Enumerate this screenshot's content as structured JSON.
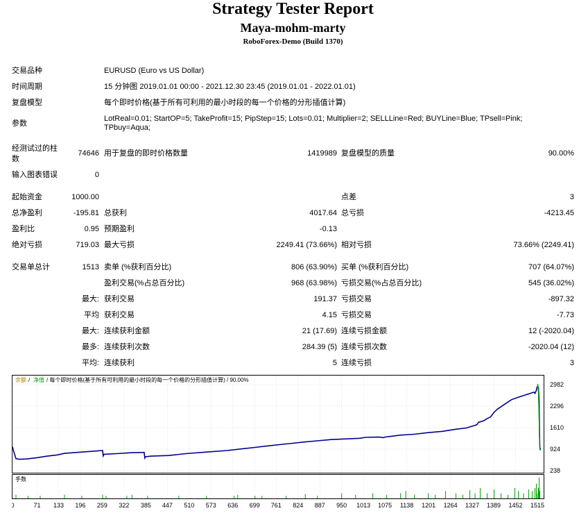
{
  "header": {
    "title": "Strategy Tester Report",
    "expert": "Maya-mohm-marty",
    "server": "RoboForex-Demo (Build 1370)"
  },
  "info": {
    "symbol_label": "交易品种",
    "symbol_value": "EURUSD (Euro vs US Dollar)",
    "period_label": "时间周期",
    "period_value": "15 分钟图 2019.01.01 00:00 - 2021.12.30 23:45 (2019.01.01 - 2022.01.01)",
    "model_label": "复盘模型",
    "model_value": "每个即时价格(基于所有可利用的最小时段的每一个价格的分形插值计算)",
    "params_label": "参数",
    "params_line1": "LotReal=0.01; StartOP=5; TakeProfit=15; PipStep=15; Lots=0.01; Multiplier=2; SELLLine=Red; BUYLine=Blue; TPsell=Pink;",
    "params_line2": "TPbuy=Aqua;"
  },
  "bars": {
    "bars_label_1": "经测试过的柱",
    "bars_label_2": "数",
    "bars_value": "74646",
    "ticks_label": "用于复盘的即时价格数量",
    "ticks_value": "1419989",
    "quality_label": "复盘模型的质量",
    "quality_value": "90.00%",
    "errors_label": "输入图表错误",
    "errors_value": "0"
  },
  "stats": {
    "initial_deposit_label": "起始资金",
    "initial_deposit": "1000.00",
    "spread_label": "点差",
    "spread": "3",
    "net_profit_label": "总净盈利",
    "net_profit": "-195.81",
    "gross_profit_label": "总获利",
    "gross_profit": "4017.64",
    "gross_loss_label": "总亏损",
    "gross_loss": "-4213.45",
    "profit_factor_label": "盈利比",
    "profit_factor": "0.95",
    "expected_payoff_label": "预期盈利",
    "expected_payoff": "-0.13",
    "abs_drawdown_label": "绝对亏损",
    "abs_drawdown": "719.03",
    "max_drawdown_label": "最大亏损",
    "max_drawdown": "2249.41 (73.66%)",
    "rel_drawdown_label": "相对亏损",
    "rel_drawdown": "73.66% (2249.41)"
  },
  "trades": {
    "total_label": "交易单总计",
    "total": "1513",
    "short_label": "卖单 (%获利百分比)",
    "short": "806 (63.90%)",
    "long_label": "买单 (%获利百分比)",
    "long": "707 (64.07%)",
    "profit_trades_label": "盈利交易(%占总百分比)",
    "profit_trades": "968 (63.98%)",
    "loss_trades_label": "亏损交易(%占总百分比)",
    "loss_trades": "545 (36.02%)",
    "largest_label": "最大:",
    "largest_profit_label": "获利交易",
    "largest_profit": "191.37",
    "largest_loss_label": "亏损交易",
    "largest_loss": "-897.32",
    "average_label": "平均",
    "average_profit_label": "获利交易",
    "average_profit": "4.15",
    "average_loss_label": "亏损交易",
    "average_loss": "-7.73",
    "max_label": "最大:",
    "max_consec_wins_label": "连续获利金额",
    "max_consec_wins": "21 (17.69)",
    "max_consec_losses_label": "连续亏损金额",
    "max_consec_losses": "12 (-2020.04)",
    "maximal_label": "最多:",
    "maximal_consec_profit_label": "连续获利次数",
    "maximal_consec_profit": "284.39 (5)",
    "maximal_consec_loss_label": "连续亏损次数",
    "maximal_consec_loss": "-2020.04 (12)",
    "avg_label": "平均:",
    "avg_consec_wins_label": "连续获利",
    "avg_consec_wins": "5",
    "avg_consec_losses_label": "连续亏损",
    "avg_consec_losses": "3"
  },
  "chart_legend": {
    "balance": "余额",
    "sep1": "/",
    "equity": "净值",
    "rest": "/ 每个即时价格(基于所有可利用的最小时段的每一个价格的分形插值计算) / 90.00%",
    "volume": "手数"
  },
  "colors": {
    "balance_line": "#000090",
    "volume_bars": "#00a000",
    "legend_balance": "#b08000",
    "legend_equity": "#00a000",
    "chart_border": "#000000"
  },
  "chart_data": {
    "type": "line",
    "title": "",
    "ylabel": "",
    "xlabel": "",
    "y_ticks": [
      2982,
      2296,
      1610,
      924,
      238
    ],
    "ylim": [
      238,
      2982
    ],
    "x_ticks": [
      "0",
      "71",
      "133",
      "196",
      "259",
      "322",
      "385",
      "447",
      "510",
      "573",
      "636",
      "699",
      "761",
      "824",
      "887",
      "950",
      "1013",
      "1075",
      "1138",
      "1201",
      "1264",
      "1327",
      "1389",
      "1452",
      "1515"
    ],
    "xlim": [
      0,
      1525
    ],
    "series": [
      {
        "x": [
          0,
          3,
          10,
          20,
          40,
          70,
          100,
          130,
          150,
          260,
          262,
          264,
          300,
          330,
          340,
          360,
          380,
          382,
          384,
          400,
          450,
          500,
          560,
          620,
          660,
          700,
          740,
          780,
          800,
          840,
          880,
          920,
          960,
          1000,
          1020,
          1060,
          1070,
          1075,
          1090,
          1120,
          1160,
          1200,
          1240,
          1280,
          1310,
          1340,
          1345,
          1360,
          1370,
          1380,
          1390,
          1400,
          1420,
          1440,
          1460,
          1480,
          1500,
          1505,
          1508,
          1512,
          1514,
          1516,
          1518,
          1520,
          1521,
          1522,
          1523,
          1524
        ],
        "y": [
          1000,
          870,
          620,
          600,
          610,
          650,
          700,
          740,
          790,
          880,
          710,
          760,
          780,
          800,
          810,
          815,
          820,
          640,
          680,
          700,
          720,
          780,
          830,
          880,
          930,
          980,
          1030,
          1080,
          1100,
          1150,
          1190,
          1230,
          1250,
          1270,
          1300,
          1310,
          1290,
          1310,
          1330,
          1370,
          1400,
          1450,
          1490,
          1560,
          1600,
          1700,
          1780,
          1830,
          1900,
          1950,
          2100,
          2200,
          2350,
          2500,
          2580,
          2650,
          2720,
          2740,
          2700,
          2800,
          2900,
          2940,
          2870,
          2450,
          1500,
          1000,
          900,
          950
        ]
      },
      {
        "x": [
          1515,
          1516,
          1517,
          1518,
          1519,
          1520,
          1521,
          1522,
          1523,
          1524
        ],
        "y": [
          2850,
          3000,
          2900,
          2700,
          2300,
          1800,
          1300,
          950,
          900,
          920
        ]
      }
    ],
    "volume": {
      "ylabel": "手数",
      "x": [
        10,
        45,
        80,
        150,
        200,
        260,
        270,
        330,
        345,
        390,
        480,
        560,
        640,
        650,
        700,
        720,
        790,
        845,
        880,
        950,
        990,
        1040,
        1080,
        1120,
        1135,
        1160,
        1200,
        1220,
        1250,
        1280,
        1300,
        1320,
        1335,
        1350,
        1370,
        1390,
        1410,
        1430,
        1450,
        1460,
        1475,
        1490,
        1500,
        1508,
        1512,
        1515,
        1518,
        1520,
        1522
      ],
      "y": [
        0.02,
        0.01,
        0.01,
        0.02,
        0.01,
        0.02,
        0.01,
        0.01,
        0.02,
        0.01,
        0.01,
        0.01,
        0.01,
        0.02,
        0.01,
        0.01,
        0.01,
        0.03,
        0.01,
        0.04,
        0.02,
        0.04,
        0.02,
        0.04,
        0.08,
        0.02,
        0.04,
        0.02,
        0.08,
        0.04,
        0.02,
        0.1,
        0.04,
        0.16,
        0.04,
        0.12,
        0.04,
        0.02,
        0.16,
        0.08,
        0.04,
        0.12,
        0.08,
        0.16,
        0.32,
        0.04,
        0.16,
        0.64,
        0.08
      ]
    }
  }
}
